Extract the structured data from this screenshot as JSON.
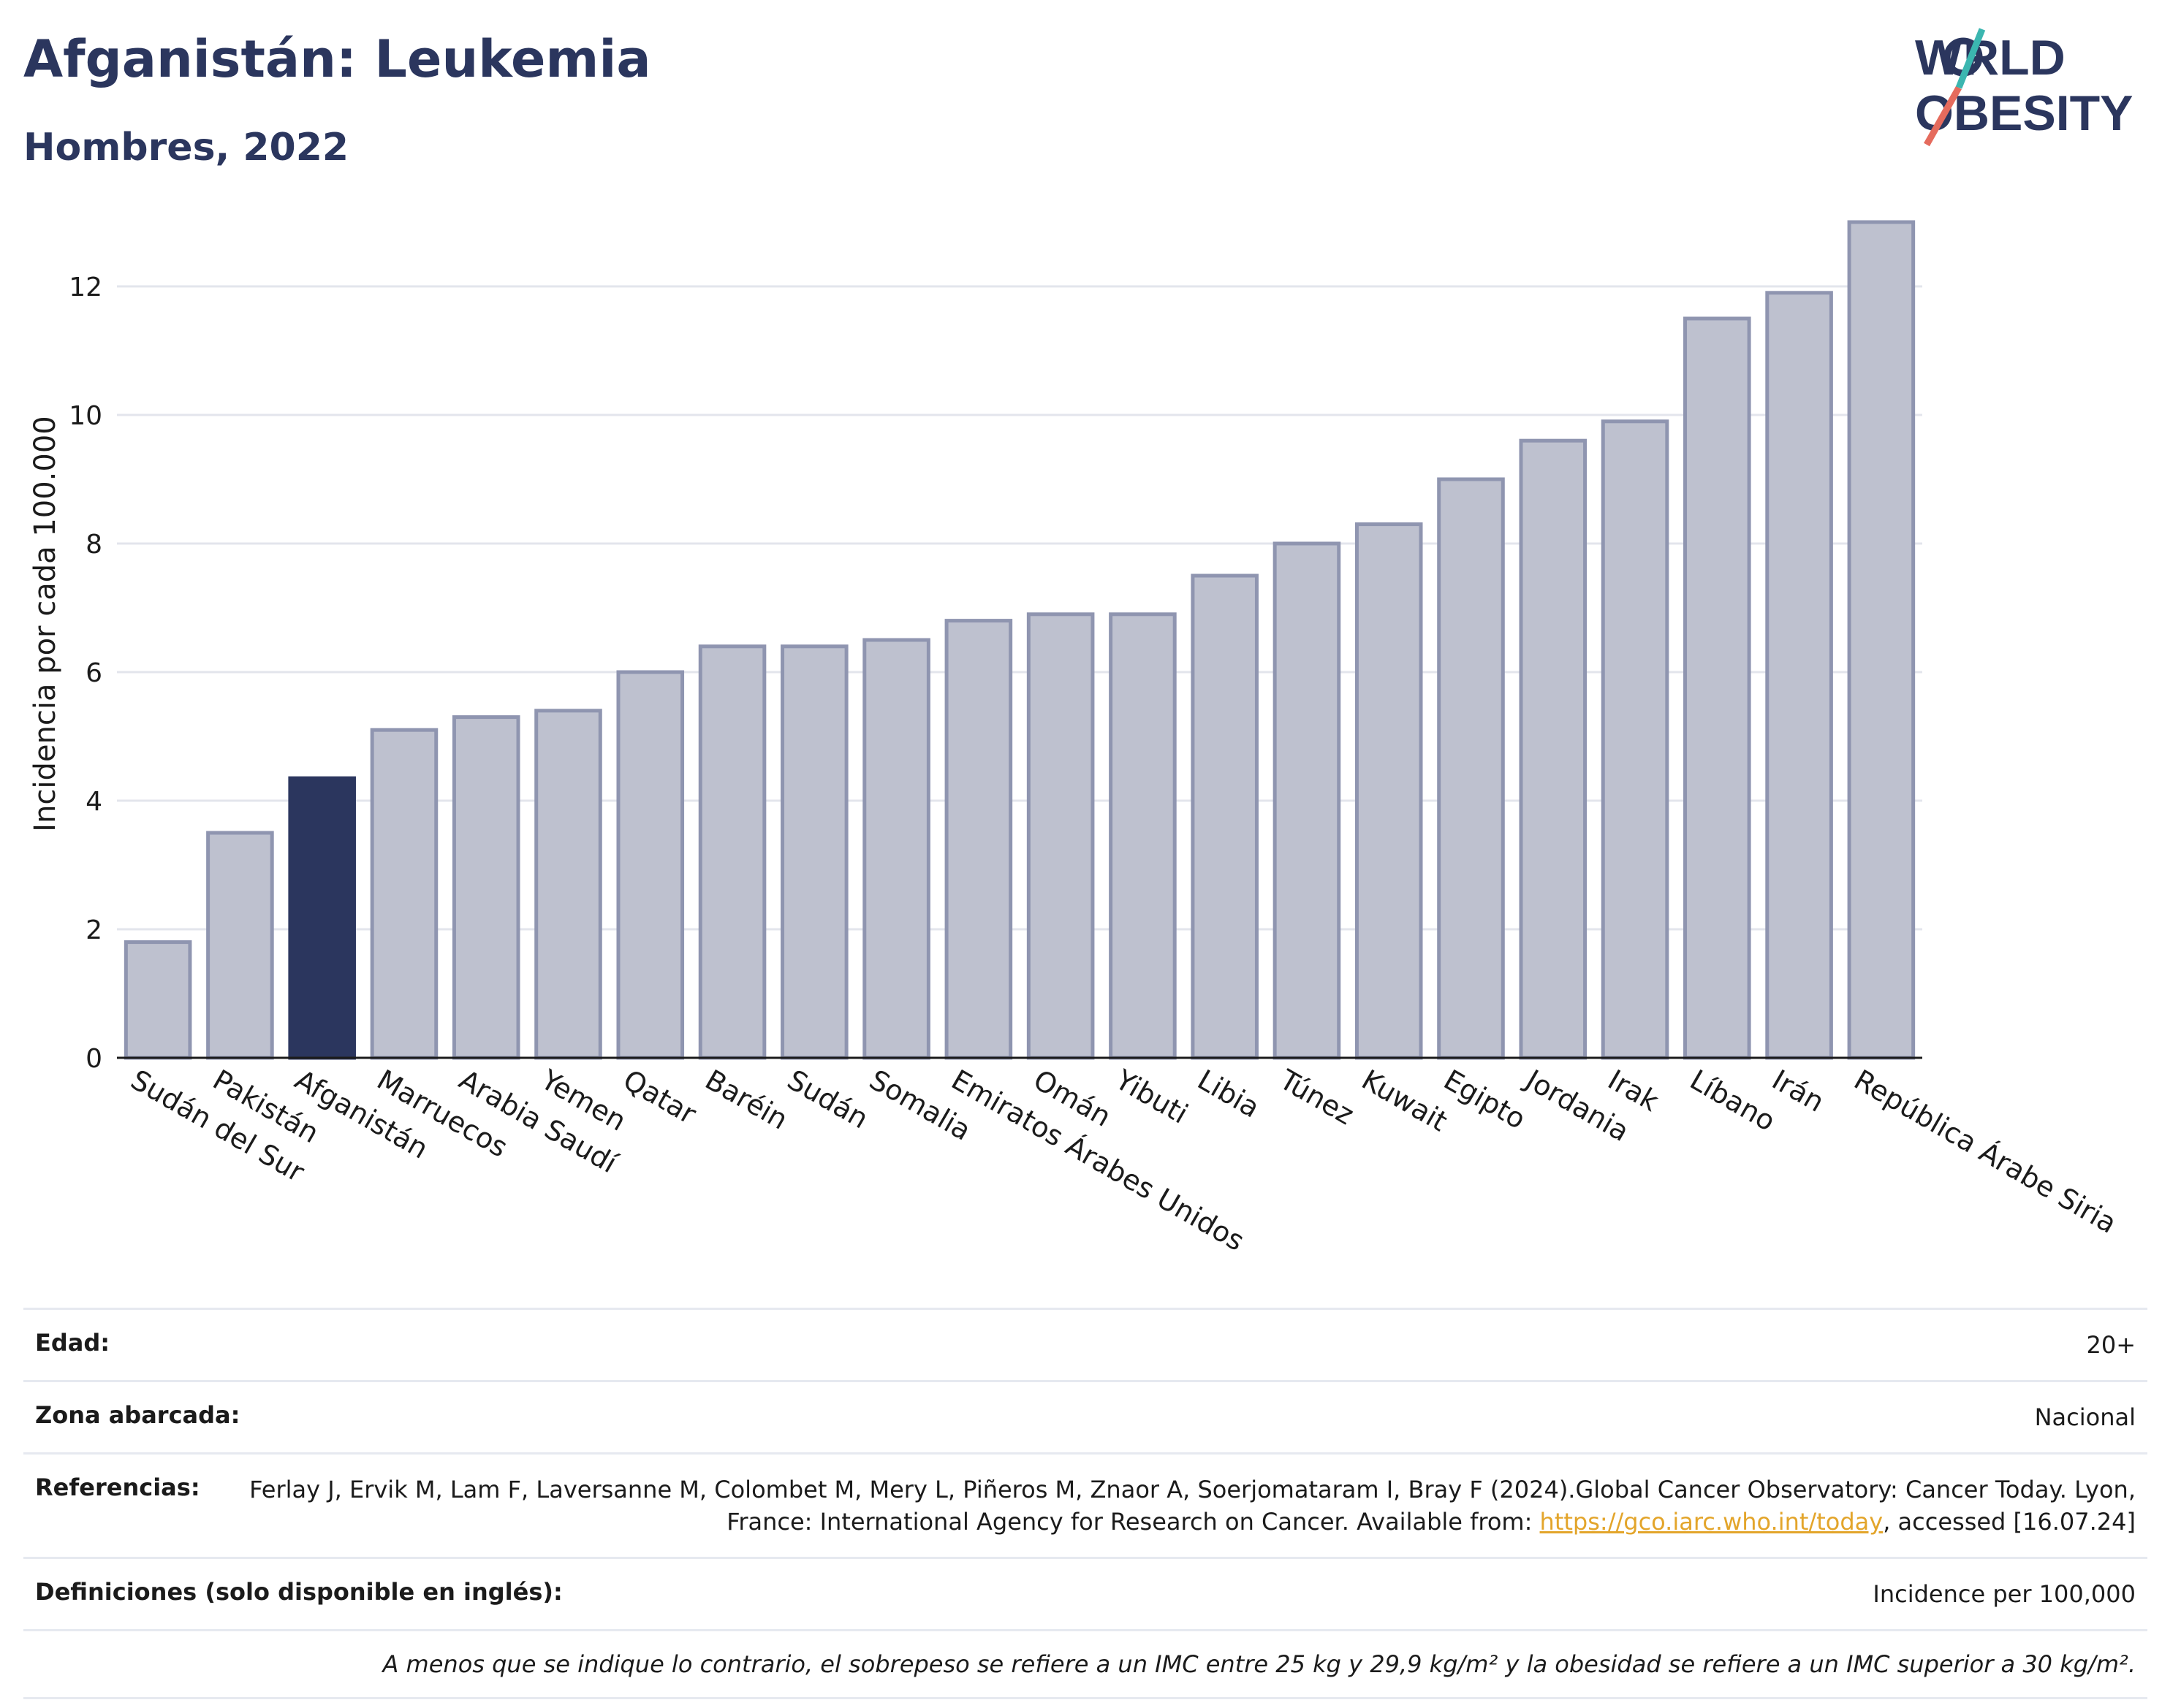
{
  "header": {
    "title": "Afganistán: Leukemia",
    "subtitle": "Hombres, 2022"
  },
  "logo": {
    "line1": "WORLD",
    "line2": "OBESITY"
  },
  "chart_data": {
    "type": "bar",
    "ylabel": "Incidencia por cada 100.000",
    "ylim": [
      0,
      13.5
    ],
    "yticks": [
      0,
      2,
      4,
      6,
      8,
      10,
      12
    ],
    "grid": true,
    "highlight": "Afganistán",
    "categories": [
      "Sudán del Sur",
      "Pakistán",
      "Afganistán",
      "Marruecos",
      "Arabia Saudí",
      "Yemen",
      "Qatar",
      "Baréin",
      "Sudán",
      "Somalia",
      "Emiratos Árabes Unidos",
      "Omán",
      "Yibuti",
      "Libia",
      "Túnez",
      "Kuwait",
      "Egipto",
      "Jordania",
      "Irak",
      "Líbano",
      "Irán",
      "República Árabe Siria"
    ],
    "values": [
      1.8,
      3.5,
      4.35,
      5.1,
      5.3,
      5.4,
      6.0,
      6.4,
      6.4,
      6.5,
      6.8,
      6.9,
      6.9,
      7.5,
      8.0,
      8.3,
      9.0,
      9.6,
      9.9,
      11.5,
      11.9,
      13.0
    ],
    "colors": {
      "bar": "#bec1cf",
      "bar_edge": "#8f95b0",
      "highlight": "#2b365e"
    }
  },
  "meta": {
    "age_label": "Edad:",
    "age_value": "20+",
    "area_label": "Zona abarcada:",
    "area_value": "Nacional",
    "refs_label": "Referencias:",
    "refs_text": "Ferlay J, Ervik M, Lam F, Laversanne M, Colombet M, Mery L, Piñeros M, Znaor A, Soerjomataram I, Bray F (2024).Global Cancer Observatory: Cancer Today. Lyon, France: International Agency for Research on Cancer. Available from: ",
    "refs_link": "https://gco.iarc.who.int/today",
    "refs_tail": ", accessed [16.07.24]",
    "defs_label": "Definiciones (solo disponible en inglés):",
    "defs_value": "Incidence per 100,000",
    "note": "A menos que se indique lo contrario, el sobrepeso se refiere a un IMC entre 25 kg y 29,9 kg/m² y la obesidad se refiere a un IMC superior a 30 kg/m²."
  }
}
